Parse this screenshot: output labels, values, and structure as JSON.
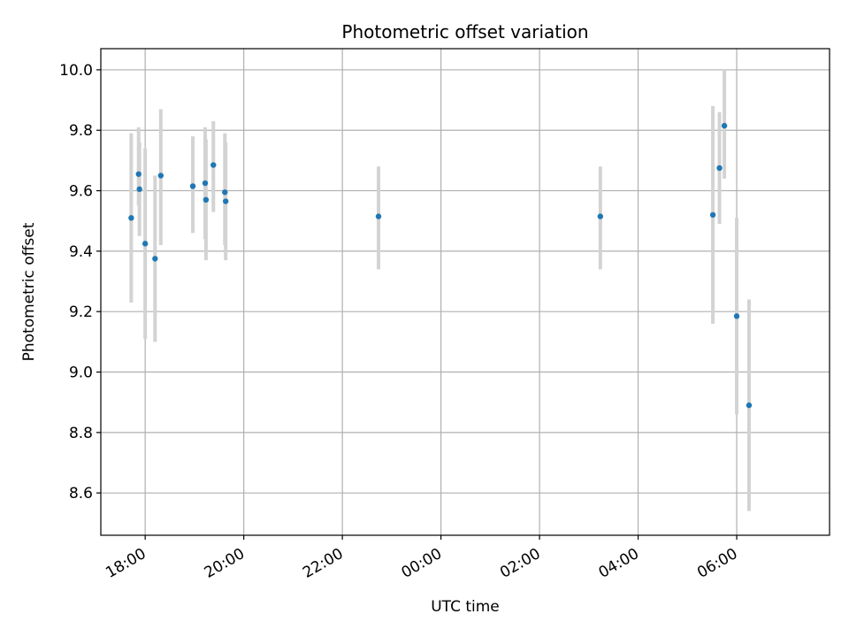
{
  "chart_data": {
    "type": "scatter",
    "title": "Photometric offset variation",
    "xlabel": "UTC time",
    "ylabel": "Photometric offset",
    "x_axis_kind": "time (HH:MM)",
    "xlim": [
      "17:06",
      "07:53"
    ],
    "ylim": [
      8.46,
      10.07
    ],
    "x_ticks": [
      "18:00",
      "20:00",
      "22:00",
      "00:00",
      "02:00",
      "04:00",
      "06:00"
    ],
    "y_ticks": [
      "8.6",
      "8.8",
      "9.0",
      "9.2",
      "9.4",
      "9.6",
      "9.8",
      "10.0"
    ],
    "grid": true,
    "marker_color": "#1f77b4",
    "errorbar_color": "#d3d3d3",
    "points": [
      {
        "x": "17:43",
        "y": 9.51,
        "yerr_low": 9.23,
        "yerr_high": 9.79
      },
      {
        "x": "17:52",
        "y": 9.655,
        "yerr_low": 9.55,
        "yerr_high": 9.81
      },
      {
        "x": "17:53",
        "y": 9.605,
        "yerr_low": 9.45,
        "yerr_high": 9.76
      },
      {
        "x": "18:00",
        "y": 9.425,
        "yerr_low": 9.11,
        "yerr_high": 9.74
      },
      {
        "x": "18:12",
        "y": 9.375,
        "yerr_low": 9.1,
        "yerr_high": 9.65
      },
      {
        "x": "18:19",
        "y": 9.65,
        "yerr_low": 9.42,
        "yerr_high": 9.87
      },
      {
        "x": "18:58",
        "y": 9.615,
        "yerr_low": 9.46,
        "yerr_high": 9.78
      },
      {
        "x": "19:13",
        "y": 9.625,
        "yerr_low": 9.44,
        "yerr_high": 9.81
      },
      {
        "x": "19:14",
        "y": 9.57,
        "yerr_low": 9.37,
        "yerr_high": 9.77
      },
      {
        "x": "19:23",
        "y": 9.685,
        "yerr_low": 9.53,
        "yerr_high": 9.83
      },
      {
        "x": "19:37",
        "y": 9.595,
        "yerr_low": 9.42,
        "yerr_high": 9.79
      },
      {
        "x": "19:38",
        "y": 9.565,
        "yerr_low": 9.37,
        "yerr_high": 9.76
      },
      {
        "x": "22:44",
        "y": 9.515,
        "yerr_low": 9.34,
        "yerr_high": 9.68
      },
      {
        "x": "03:14",
        "y": 9.515,
        "yerr_low": 9.34,
        "yerr_high": 9.68
      },
      {
        "x": "05:31",
        "y": 9.52,
        "yerr_low": 9.16,
        "yerr_high": 9.88
      },
      {
        "x": "05:39",
        "y": 9.675,
        "yerr_low": 9.49,
        "yerr_high": 9.86
      },
      {
        "x": "05:45",
        "y": 9.815,
        "yerr_low": 9.64,
        "yerr_high": 10.0
      },
      {
        "x": "06:00",
        "y": 9.185,
        "yerr_low": 8.86,
        "yerr_high": 9.51
      },
      {
        "x": "06:15",
        "y": 8.89,
        "yerr_low": 8.54,
        "yerr_high": 9.24
      }
    ]
  }
}
